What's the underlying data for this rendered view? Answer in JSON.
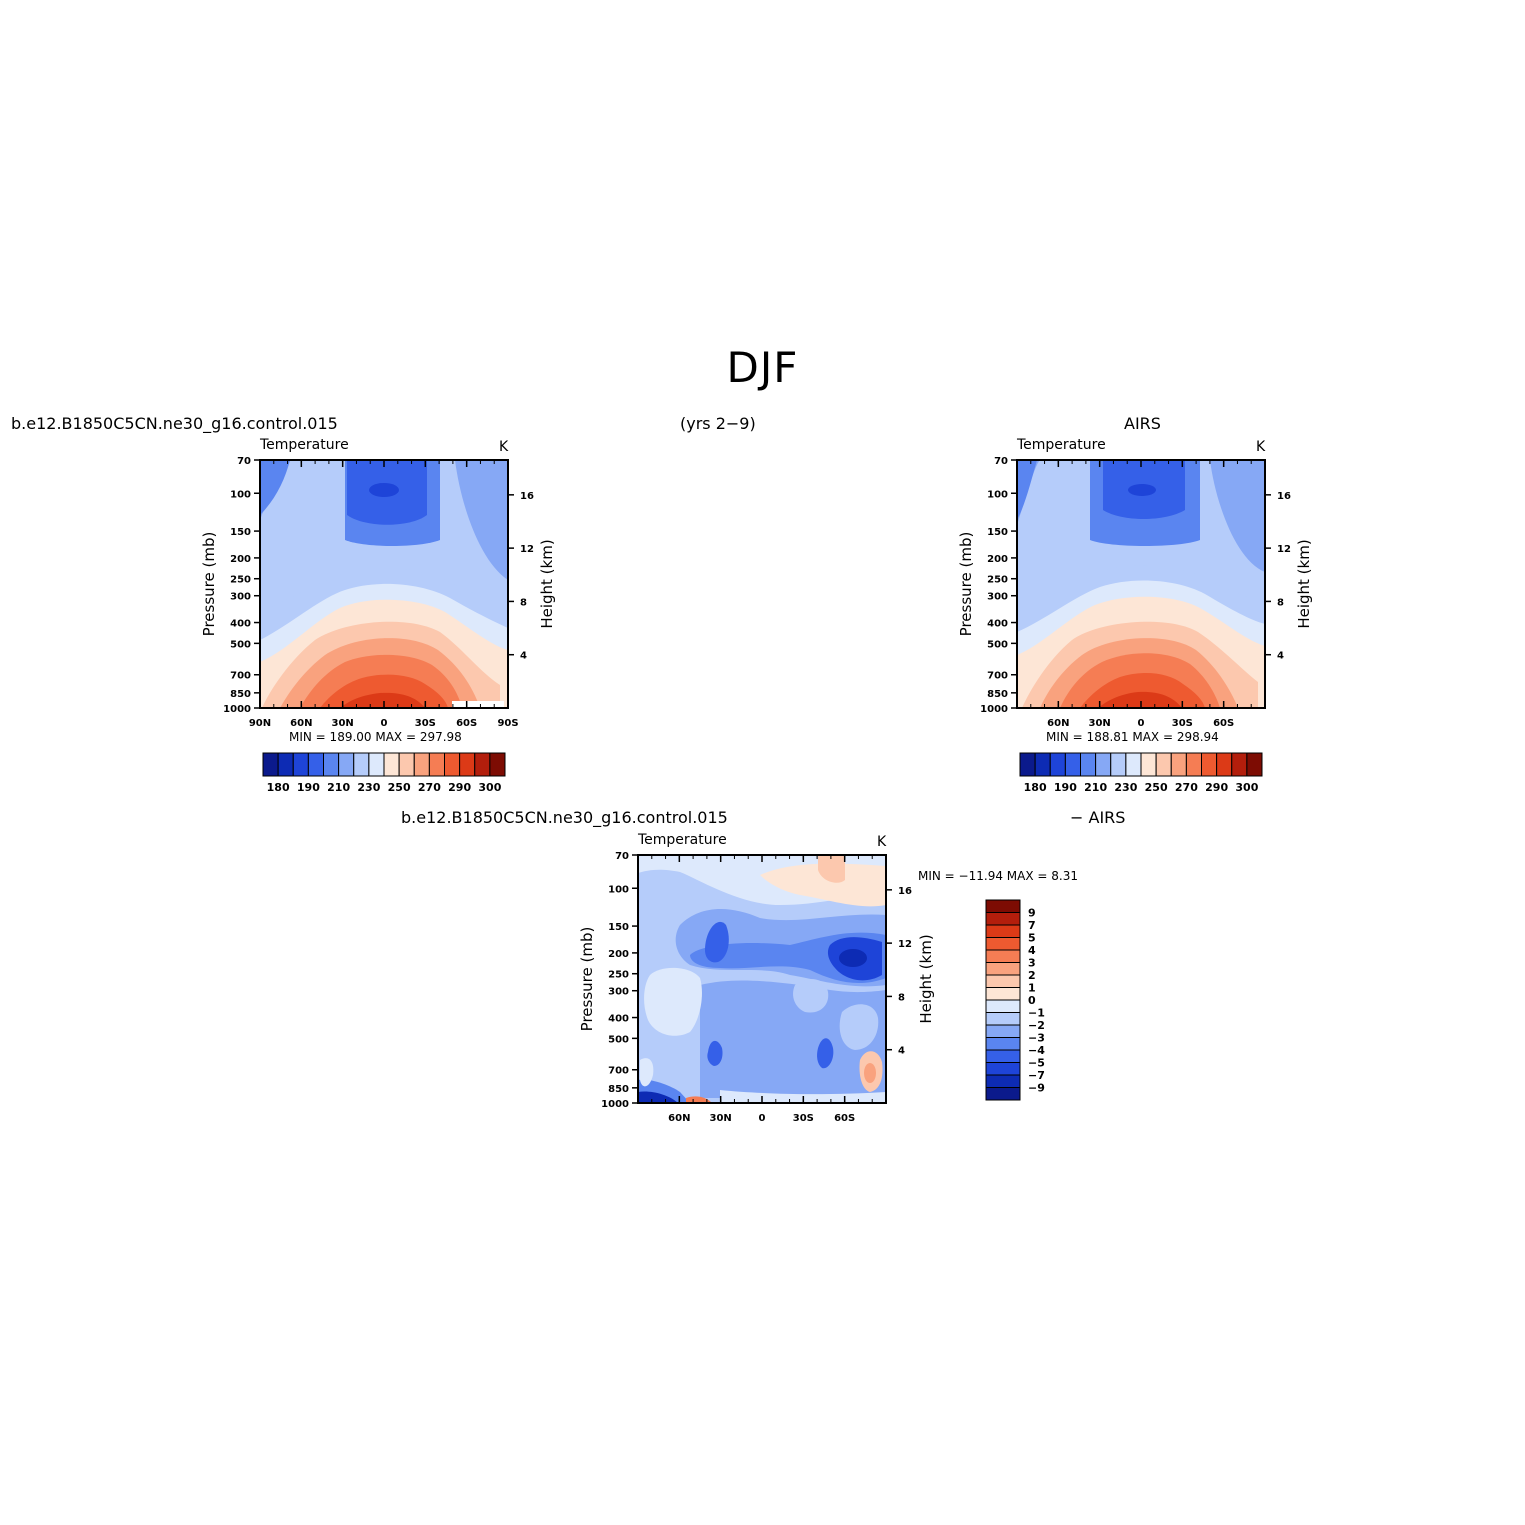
{
  "page": {
    "title": "DJF",
    "period": "(yrs 2−9)",
    "case_name": "b.e12.B1850C5CN.ne30_g16.control.015",
    "obs_name": "AIRS",
    "diff_label": "− AIRS"
  },
  "panels": {
    "left": {
      "field": "Temperature",
      "units": "K",
      "stats": "MIN =  189.00   MAX = 297.98",
      "ylabel": "Pressure (mb)",
      "y2label": "Height (km)",
      "xticks": [
        "90N",
        "60N",
        "30N",
        "0",
        "30S",
        "60S",
        "90S"
      ],
      "colorbar_labels": [
        "180",
        "190",
        "210",
        "230",
        "250",
        "270",
        "290",
        "300"
      ]
    },
    "right": {
      "field": "Temperature",
      "units": "K",
      "stats": "MIN =  188.81   MAX = 298.94",
      "ylabel": "Pressure (mb)",
      "y2label": "Height (km)",
      "xticks": [
        "60N",
        "30N",
        "0",
        "30S",
        "60S"
      ],
      "colorbar_labels": [
        "180",
        "190",
        "210",
        "230",
        "250",
        "270",
        "290",
        "300"
      ]
    },
    "bottom": {
      "field": "Temperature",
      "units": "K",
      "stats": "MIN = −11.94   MAX =     8.31",
      "ylabel": "Pressure (mb)",
      "y2label": "Height (km)",
      "xticks": [
        "60N",
        "30N",
        "0",
        "30S",
        "60S"
      ],
      "colorbar_labels": [
        "9",
        "7",
        "5",
        "4",
        "3",
        "2",
        "1",
        "0",
        "−1",
        "−2",
        "−3",
        "−4",
        "−5",
        "−7",
        "−9"
      ]
    }
  },
  "chart_data": [
    {
      "type": "heatmap",
      "name": "model",
      "x_labels": [
        "90N",
        "60N",
        "30N",
        "0",
        "30S",
        "60S",
        "90S"
      ],
      "x_values": [
        90,
        60,
        30,
        0,
        -30,
        -60,
        -90
      ],
      "y_ticks": [
        70,
        100,
        150,
        200,
        250,
        300,
        400,
        500,
        700,
        850,
        1000
      ],
      "y_scale": "log",
      "y2_ticks": [
        16,
        12,
        8,
        4
      ],
      "min": 189.0,
      "max": 297.98,
      "levels": [
        180,
        185,
        190,
        200,
        210,
        220,
        230,
        240,
        250,
        260,
        270,
        280,
        290,
        295,
        300
      ],
      "colors": [
        "#0b1a8c",
        "#0d2bb4",
        "#1e44d8",
        "#3560e8",
        "#5a85f0",
        "#86a8f5",
        "#b5ccfa",
        "#dde9fc",
        "#fde6d6",
        "#fcc8ae",
        "#f9a27e",
        "#f57d54",
        "#ee5a30",
        "#dc3a17",
        "#b31e0c",
        "#7d0c03"
      ]
    },
    {
      "type": "heatmap",
      "name": "obs",
      "x_labels": [
        "60N",
        "30N",
        "0",
        "30S",
        "60S"
      ],
      "x_values": [
        60,
        30,
        0,
        -30,
        -60
      ],
      "y_ticks": [
        70,
        100,
        150,
        200,
        250,
        300,
        400,
        500,
        700,
        850,
        1000
      ],
      "y_scale": "log",
      "y2_ticks": [
        16,
        12,
        8,
        4
      ],
      "min": 188.81,
      "max": 298.94,
      "levels": [
        180,
        185,
        190,
        200,
        210,
        220,
        230,
        240,
        250,
        260,
        270,
        280,
        290,
        295,
        300
      ],
      "colors": [
        "#0b1a8c",
        "#0d2bb4",
        "#1e44d8",
        "#3560e8",
        "#5a85f0",
        "#86a8f5",
        "#b5ccfa",
        "#dde9fc",
        "#fde6d6",
        "#fcc8ae",
        "#f9a27e",
        "#f57d54",
        "#ee5a30",
        "#dc3a17",
        "#b31e0c",
        "#7d0c03"
      ]
    },
    {
      "type": "heatmap",
      "name": "difference",
      "x_labels": [
        "60N",
        "30N",
        "0",
        "30S",
        "60S"
      ],
      "x_values": [
        60,
        30,
        0,
        -30,
        -60
      ],
      "y_ticks": [
        70,
        100,
        150,
        200,
        250,
        300,
        400,
        500,
        700,
        850,
        1000
      ],
      "y_scale": "log",
      "y2_ticks": [
        16,
        12,
        8,
        4
      ],
      "min": -11.94,
      "max": 8.31,
      "levels": [
        9,
        7,
        5,
        4,
        3,
        2,
        1,
        0,
        -1,
        -2,
        -3,
        -4,
        -5,
        -7,
        -9
      ],
      "colors": [
        "#7d0c03",
        "#b31e0c",
        "#dc3a17",
        "#ee5a30",
        "#f57d54",
        "#f9a27e",
        "#fcc8ae",
        "#fde6d6",
        "#dde9fc",
        "#b5ccfa",
        "#86a8f5",
        "#5a85f0",
        "#3560e8",
        "#1e44d8",
        "#0d2bb4",
        "#0b1a8c"
      ]
    }
  ]
}
